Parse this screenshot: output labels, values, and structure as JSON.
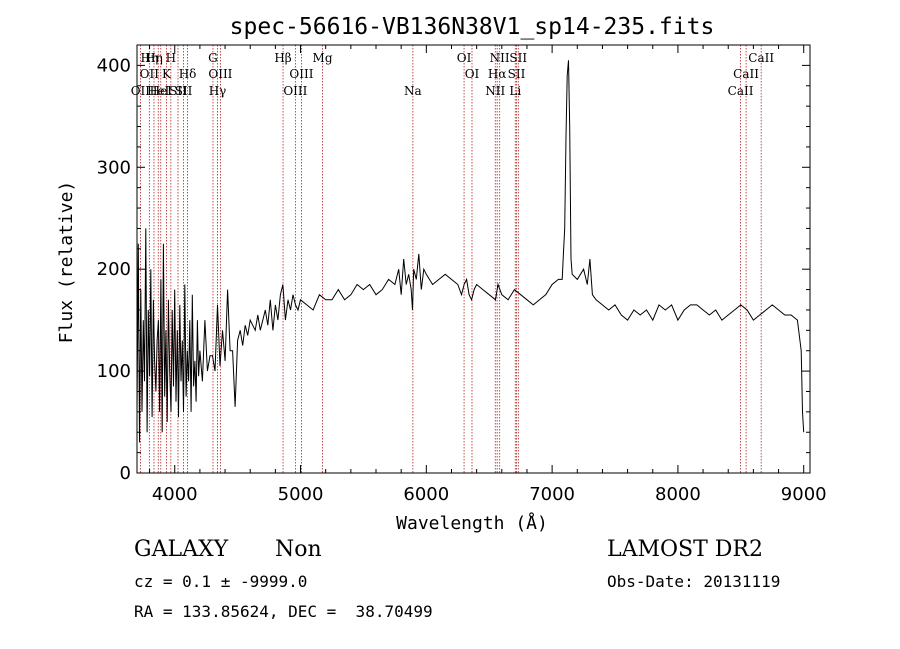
{
  "chart_data": {
    "type": "line",
    "title": "spec-56616-VB136N38V1_sp14-235.fits",
    "xlabel": "Wavelength (Å)",
    "ylabel": "Flux (relative)",
    "xlim": [
      3700,
      9050
    ],
    "ylim": [
      0,
      420
    ],
    "x_ticks": [
      4000,
      5000,
      6000,
      7000,
      8000,
      9000
    ],
    "y_ticks": [
      0,
      100,
      200,
      300,
      400
    ],
    "x_tick_labels": [
      "4000",
      "5000",
      "6000",
      "7000",
      "8000",
      "9000"
    ],
    "y_tick_labels": [
      "0",
      "100",
      "200",
      "300",
      "400"
    ],
    "grid": false,
    "series_color": "#000000",
    "line_color": "#b22222",
    "series": [
      {
        "x": [
          3700,
          3710,
          3720,
          3730,
          3740,
          3750,
          3760,
          3770,
          3780,
          3790,
          3800,
          3810,
          3820,
          3830,
          3840,
          3850,
          3860,
          3870,
          3880,
          3890,
          3900,
          3910,
          3920,
          3930,
          3940,
          3950,
          3960,
          3970,
          3980,
          3990,
          4000,
          4010,
          4020,
          4030,
          4040,
          4050,
          4060,
          4070,
          4080,
          4090,
          4100,
          4110,
          4120,
          4130,
          4140,
          4150,
          4160,
          4170,
          4180,
          4190,
          4200,
          4220,
          4240,
          4260,
          4280,
          4300,
          4320,
          4340,
          4360,
          4380,
          4400,
          4420,
          4440,
          4460,
          4480,
          4500,
          4520,
          4540,
          4560,
          4580,
          4600,
          4620,
          4640,
          4660,
          4680,
          4700,
          4720,
          4740,
          4760,
          4780,
          4800,
          4820,
          4840,
          4860,
          4880,
          4900,
          4920,
          4940,
          4960,
          4980,
          5000,
          5050,
          5100,
          5150,
          5200,
          5250,
          5300,
          5350,
          5400,
          5450,
          5500,
          5550,
          5600,
          5650,
          5700,
          5750,
          5780,
          5800,
          5820,
          5840,
          5860,
          5880,
          5890,
          5900,
          5920,
          5940,
          5960,
          5980,
          6000,
          6050,
          6100,
          6150,
          6200,
          6250,
          6280,
          6300,
          6320,
          6340,
          6360,
          6380,
          6400,
          6450,
          6500,
          6550,
          6570,
          6600,
          6650,
          6700,
          6750,
          6800,
          6850,
          6900,
          6950,
          7000,
          7050,
          7080,
          7090,
          7100,
          7110,
          7120,
          7130,
          7140,
          7150,
          7160,
          7200,
          7250,
          7280,
          7300,
          7320,
          7350,
          7400,
          7450,
          7500,
          7550,
          7600,
          7650,
          7700,
          7750,
          7800,
          7850,
          7900,
          7950,
          8000,
          8050,
          8100,
          8150,
          8200,
          8250,
          8300,
          8350,
          8400,
          8450,
          8500,
          8550,
          8600,
          8650,
          8700,
          8750,
          8800,
          8850,
          8900,
          8950,
          8980,
          8990,
          9000
        ],
        "y": [
          60,
          225,
          30,
          180,
          60,
          150,
          90,
          240,
          40,
          160,
          95,
          200,
          55,
          170,
          110,
          80,
          130,
          150,
          60,
          190,
          40,
          225,
          75,
          140,
          50,
          170,
          100,
          60,
          160,
          85,
          180,
          70,
          140,
          55,
          165,
          90,
          130,
          60,
          185,
          75,
          120,
          90,
          150,
          60,
          175,
          85,
          110,
          70,
          150,
          95,
          120,
          90,
          150,
          100,
          115,
          115,
          100,
          165,
          105,
          140,
          110,
          180,
          120,
          120,
          65,
          130,
          140,
          125,
          145,
          135,
          150,
          145,
          140,
          155,
          140,
          150,
          160,
          145,
          170,
          140,
          165,
          150,
          175,
          185,
          150,
          170,
          160,
          175,
          165,
          160,
          170,
          165,
          160,
          175,
          170,
          170,
          180,
          170,
          175,
          185,
          180,
          185,
          175,
          180,
          190,
          185,
          200,
          175,
          210,
          185,
          195,
          180,
          160,
          200,
          190,
          215,
          180,
          200,
          195,
          185,
          190,
          195,
          190,
          185,
          175,
          185,
          190,
          175,
          170,
          180,
          185,
          180,
          175,
          170,
          185,
          175,
          170,
          180,
          175,
          170,
          165,
          170,
          175,
          185,
          190,
          190,
          215,
          240,
          330,
          390,
          405,
          340,
          210,
          195,
          190,
          200,
          185,
          210,
          175,
          170,
          165,
          160,
          165,
          155,
          150,
          160,
          155,
          160,
          150,
          165,
          160,
          165,
          150,
          160,
          165,
          165,
          160,
          155,
          160,
          150,
          155,
          160,
          165,
          160,
          150,
          155,
          160,
          165,
          160,
          155,
          155,
          150,
          120,
          60,
          40
        ]
      }
    ],
    "lines": [
      {
        "x": 3727,
        "labels": [
          "OII"
        ],
        "level": 2
      },
      {
        "x": 3798,
        "labels": [
          "Hη",
          "OII"
        ],
        "level": 0
      },
      {
        "x": 3835,
        "labels": [
          "Hη"
        ],
        "level": 0
      },
      {
        "x": 3869,
        "labels": [
          "HeI"
        ],
        "level": 2
      },
      {
        "x": 3889,
        "labels": [
          "HeI"
        ],
        "level": 2
      },
      {
        "x": 3934,
        "labels": [
          "K"
        ],
        "level": 1
      },
      {
        "x": 3969,
        "labels": [
          "H"
        ],
        "level": 0
      },
      {
        "x": 4026,
        "labels": [
          "SII"
        ],
        "level": 2
      },
      {
        "x": 4070,
        "labels": [
          "SII"
        ],
        "level": 2
      },
      {
        "x": 4102,
        "labels": [
          "Hδ"
        ],
        "level": 1
      },
      {
        "x": 4304,
        "labels": [
          "G"
        ],
        "level": 0
      },
      {
        "x": 4340,
        "labels": [
          "Hγ"
        ],
        "level": 2
      },
      {
        "x": 4363,
        "labels": [
          "OIII"
        ],
        "level": 1
      },
      {
        "x": 4861,
        "labels": [
          "Hβ"
        ],
        "level": 0
      },
      {
        "x": 4959,
        "labels": [
          "OIII"
        ],
        "level": 2
      },
      {
        "x": 5007,
        "labels": [
          "OIII"
        ],
        "level": 1
      },
      {
        "x": 5175,
        "labels": [
          "Mg"
        ],
        "level": 0
      },
      {
        "x": 5893,
        "labels": [
          "Na"
        ],
        "level": 2
      },
      {
        "x": 6300,
        "labels": [
          "OI"
        ],
        "level": 0
      },
      {
        "x": 6363,
        "labels": [
          "OI"
        ],
        "level": 1
      },
      {
        "x": 6548,
        "labels": [
          "NII"
        ],
        "level": 2
      },
      {
        "x": 6563,
        "labels": [
          "Hα"
        ],
        "level": 1
      },
      {
        "x": 6583,
        "labels": [
          "NII"
        ],
        "level": 0
      },
      {
        "x": 6707,
        "labels": [
          "Li"
        ],
        "level": 2
      },
      {
        "x": 6717,
        "labels": [
          "SII"
        ],
        "level": 1
      },
      {
        "x": 6731,
        "labels": [
          "SII"
        ],
        "level": 0
      },
      {
        "x": 8498,
        "labels": [
          "CaII"
        ],
        "level": 2
      },
      {
        "x": 8542,
        "labels": [
          "CaII"
        ],
        "level": 1
      },
      {
        "x": 8662,
        "labels": [
          "CaII"
        ],
        "level": 0
      }
    ]
  },
  "info": {
    "class_label": "GALAXY",
    "subclass_label": "Non",
    "cz_text": "cz = 0.1 ± -9999.0",
    "radec_text": "RA = 133.85624, DEC =  38.70499",
    "survey": "LAMOST DR2",
    "obs_date": "Obs-Date: 20131119"
  }
}
